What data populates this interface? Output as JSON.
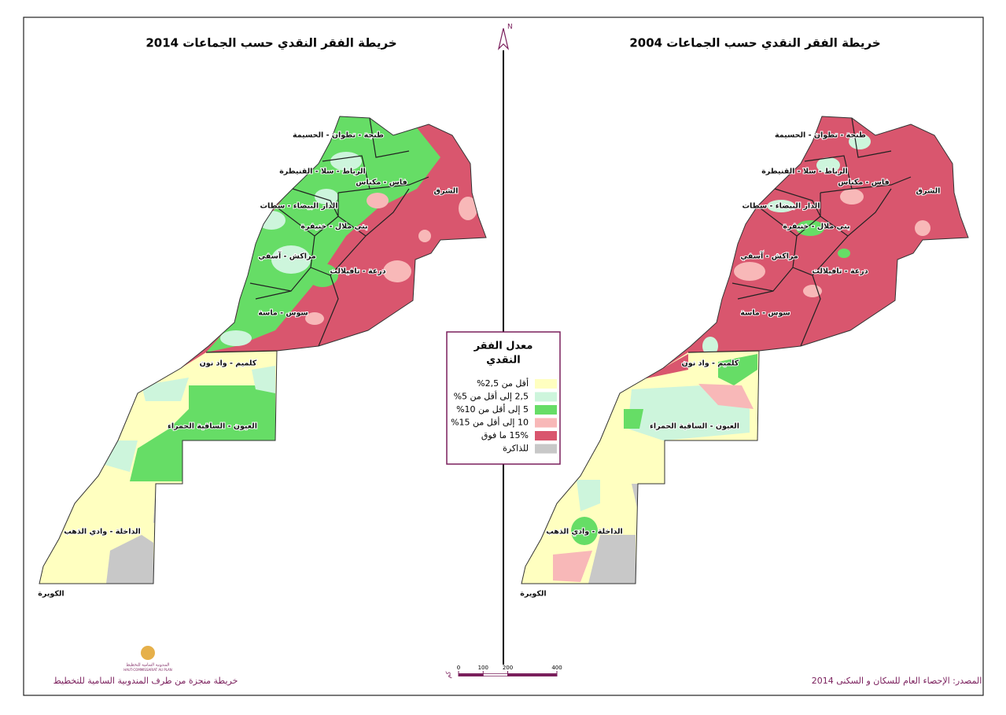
{
  "north": "N",
  "maps": [
    {
      "title": "خريطة الفقر النقدي حسب الجماعات 2014"
    },
    {
      "title": "خريطة الفقر النقدي حسب الجماعات 2004"
    }
  ],
  "regions": [
    "طنجة - تطوان - الحسيمة",
    "الشرق",
    "فاس - مكناس",
    "الرباط - سلا - القنيطرة",
    "الدار البيضاء - سطات",
    "بني ملال - خنيفرة",
    "مراكش - آسفي",
    "درعة - تافيلالت",
    "سوس - ماسة",
    "كلميم - واد نون",
    "العيون - الساقية الحمراء",
    "الداخلة - وادي الذهب",
    "الكويرة"
  ],
  "legend": {
    "title": [
      "معدل الفقر",
      "النقدي"
    ],
    "items": [
      {
        "label": "أقل من 2,5%",
        "color": "#ffffc0"
      },
      {
        "label": "2,5 إلى أقل من 5%",
        "color": "#cdf5dc"
      },
      {
        "label": "5 إلى أقل من 10%",
        "color": "#66dd66"
      },
      {
        "label": "10 إلى أقل من 15%",
        "color": "#f8b8b8"
      },
      {
        "label": "15% ما فوق",
        "color": "#d9566e"
      },
      {
        "label": "للذاكرة",
        "color": "#c8c8c8"
      }
    ]
  },
  "scale": {
    "unit": "كم",
    "ticks": [
      0,
      100,
      200,
      400
    ]
  },
  "logo": {
    "name": "المندوبية السامية للتخطيط",
    "name_fr": "HAUT-COMMISSARIAT AU PLAN"
  },
  "credit": "خريطة منجزة من طرف المندوبية السامية للتخطيط",
  "source": "المصدر: الإحصاء العام للسكان و السكنى 2014"
}
